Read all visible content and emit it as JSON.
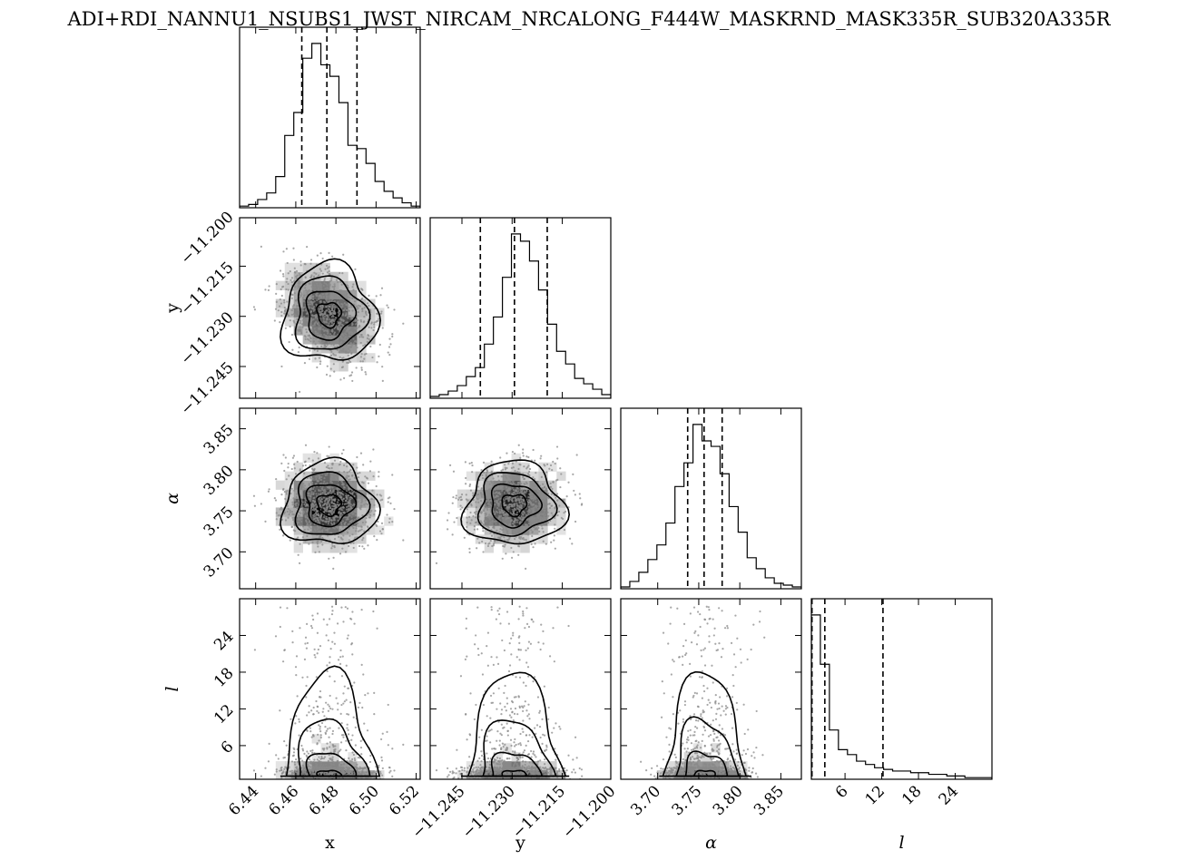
{
  "title": "ADI+RDI_NANNU1_NSUBS1_JWST_NIRCAM_NRCALONG_F444W_MASKRND_MASK335R_SUB320A335R",
  "chart_data": {
    "type": "corner",
    "title": "ADI+RDI_NANNU1_NSUBS1_JWST_NIRCAM_NRCALONG_F444W_MASKRND_MASK335R_SUB320A335R",
    "parameters": [
      {
        "key": "x",
        "label": "x",
        "italic": false,
        "range": [
          6.432,
          6.522
        ],
        "ticks": [
          6.44,
          6.46,
          6.48,
          6.5,
          6.52
        ],
        "tick_labels": [
          "6.44",
          "6.46",
          "6.48",
          "6.50",
          "6.52"
        ],
        "quantiles": [
          6.463,
          6.4755,
          6.4905
        ],
        "hist_edges_start": 6.432,
        "hist_bin_width": 0.0045,
        "hist_counts": [
          1,
          2,
          5,
          9,
          19,
          44,
          58,
          91,
          100,
          87,
          80,
          64,
          38,
          36,
          27,
          16,
          10,
          6,
          3,
          1
        ]
      },
      {
        "key": "y",
        "label": "y",
        "italic": false,
        "range": [
          -11.2545,
          -11.2005
        ],
        "ticks": [
          -11.245,
          -11.23,
          -11.215,
          -11.2
        ],
        "tick_labels": [
          "−11.245",
          "−11.230",
          "−11.215",
          "−11.200"
        ],
        "quantiles": [
          -11.2395,
          -11.2293,
          -11.2195
        ],
        "hist_edges_start": -11.2545,
        "hist_bin_width": 0.0027,
        "hist_counts": [
          1,
          2,
          4,
          7,
          12,
          17,
          30,
          45,
          67,
          91,
          87,
          76,
          60,
          41,
          26,
          19,
          11,
          8,
          5,
          2
        ]
      },
      {
        "key": "alpha",
        "label": "α",
        "italic": true,
        "range": [
          3.655,
          3.875
        ],
        "ticks": [
          3.7,
          3.75,
          3.8,
          3.85
        ],
        "tick_labels": [
          "3.70",
          "3.75",
          "3.80",
          "3.85"
        ],
        "quantiles": [
          3.7365,
          3.7565,
          3.7785
        ],
        "hist_edges_start": 3.655,
        "hist_bin_width": 0.011,
        "hist_counts": [
          1,
          4,
          9,
          16,
          24,
          36,
          56,
          69,
          90,
          81,
          78,
          63,
          45,
          31,
          17,
          11,
          6,
          3,
          2,
          1
        ]
      },
      {
        "key": "l",
        "label": "l",
        "italic": true,
        "range": [
          0.5,
          30
        ],
        "ticks": [
          6,
          12,
          18,
          24
        ],
        "tick_labels": [
          "6",
          "12",
          "18",
          "24"
        ],
        "quantiles": [
          0.6,
          2.7,
          12.2
        ],
        "hist_edges_start": 0.5,
        "hist_bin_width": 1.475,
        "hist_counts": [
          100,
          70,
          30,
          18,
          15,
          11,
          9,
          7,
          6,
          5,
          5,
          4,
          4,
          3,
          3,
          2,
          2,
          1,
          1,
          1
        ]
      }
    ],
    "contour_levels": [
      "0.5σ",
      "1σ",
      "1.5σ",
      "2σ"
    ],
    "grid": false,
    "legend": "none"
  }
}
